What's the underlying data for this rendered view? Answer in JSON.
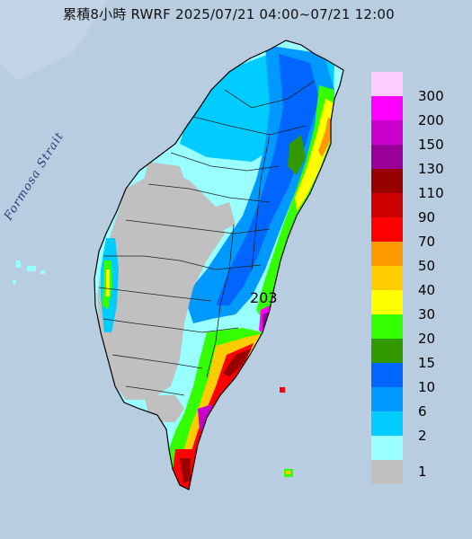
{
  "title": "累積8小時 RWRF 2025/07/21 04:00~07/21 12:00",
  "strait_label": "Formosa Strait",
  "peak_annotation": "203",
  "legend": {
    "levels": [
      {
        "label": "300",
        "color": "#ffccff"
      },
      {
        "label": "200",
        "color": "#ff00ff"
      },
      {
        "label": "150",
        "color": "#cc00cc"
      },
      {
        "label": "130",
        "color": "#990099"
      },
      {
        "label": "110",
        "color": "#990000"
      },
      {
        "label": "90",
        "color": "#cc0000"
      },
      {
        "label": "70",
        "color": "#ff0000"
      },
      {
        "label": "50",
        "color": "#ff9900"
      },
      {
        "label": "40",
        "color": "#ffcc00"
      },
      {
        "label": "30",
        "color": "#ffff00"
      },
      {
        "label": "20",
        "color": "#33ff00"
      },
      {
        "label": "15",
        "color": "#339900"
      },
      {
        "label": "10",
        "color": "#0066ff"
      },
      {
        "label": "6",
        "color": "#0099ff"
      },
      {
        "label": "2",
        "color": "#00ccff"
      },
      {
        "label": "1",
        "color": "#99ffff"
      },
      {
        "label": "",
        "color": "#c0c0c0"
      }
    ]
  },
  "colors": {
    "sea": "#b9cde0",
    "land_outline": "#000000",
    "no_rain": "#c0c0c0"
  }
}
